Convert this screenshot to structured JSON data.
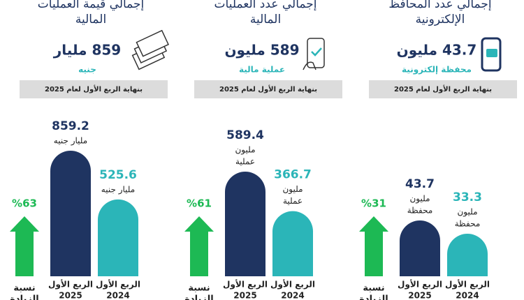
{
  "panels": [
    {
      "title": [
        "إجمالي عدد المحافظ",
        "الإلكترونية"
      ],
      "figure": "43.7 مليون",
      "unit": "محفظة إلكترونية",
      "note": "بنهاية الربع الأول لعام 2025",
      "growth": "%31",
      "growth_label": [
        "نسبة",
        "الزيادة"
      ],
      "bars": [
        {
          "period": "الربع الأول",
          "year": "2025",
          "value": 43.7,
          "label": [
            "مليون",
            "محفظة"
          ]
        },
        {
          "period": "الربع الأول",
          "year": "2024",
          "value": 33.3,
          "label": [
            "مليون",
            "محفظة"
          ]
        }
      ]
    },
    {
      "title": [
        "إجمالي عدد العمليات",
        "المالية"
      ],
      "figure": "589 مليون",
      "unit": "عملية مالية",
      "note": "بنهاية الربع الأول لعام 2025",
      "growth": "%61",
      "growth_label": [
        "نسبة",
        "الزيادة"
      ],
      "bars": [
        {
          "period": "الربع الأول",
          "year": "2025",
          "value": 589.4,
          "label": [
            "مليون",
            "عملية"
          ]
        },
        {
          "period": "الربع الأول",
          "year": "2024",
          "value": 366.7,
          "label": [
            "مليون",
            "عملية"
          ]
        }
      ]
    },
    {
      "title": [
        "إجمالي قيمة العمليات",
        "المالية"
      ],
      "figure": "859 مليار",
      "unit": "جنيه",
      "note": "بنهاية الربع الأول لعام 2025",
      "growth": "%63",
      "growth_label": [
        "نسبة",
        "الزيادة"
      ],
      "bars": [
        {
          "period": "الربع الأول",
          "year": "2025",
          "value": 859.2,
          "label": [
            "مليار جنيه"
          ]
        },
        {
          "period": "الربع الأول",
          "year": "2024",
          "value": 525.6,
          "label": [
            "مليار جنيه"
          ]
        }
      ]
    }
  ]
}
